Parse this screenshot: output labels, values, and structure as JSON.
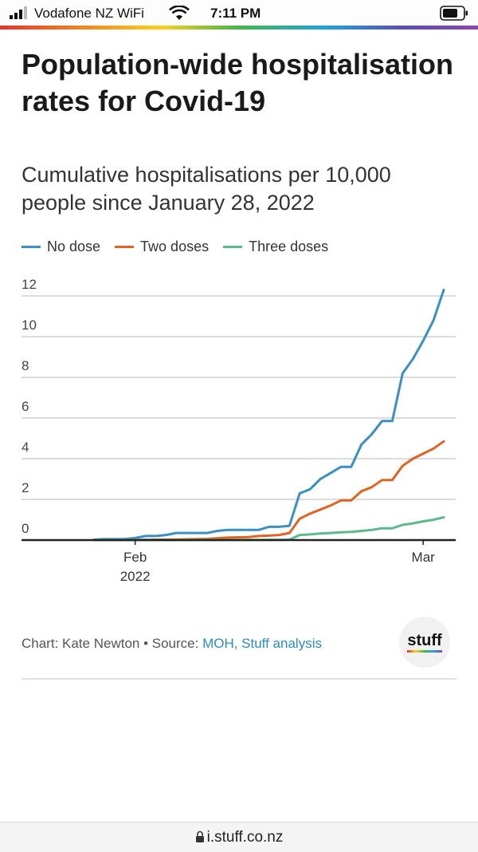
{
  "status_bar": {
    "carrier": "Vodafone NZ WiFi",
    "time": "7:11 PM"
  },
  "header": {
    "title": "Population-wide hospitalisation rates for Covid-19",
    "subtitle": "Cumulative hospitalisations per 10,000 people since January 28, 2022"
  },
  "colors": {
    "no_dose": "#3a8fc4",
    "two_doses": "#e2621f",
    "three_doses": "#5bb98a"
  },
  "chart_data": {
    "type": "line",
    "title": "Population-wide hospitalisation rates for Covid-19",
    "subtitle": "Cumulative hospitalisations per 10,000 people since January 28, 2022",
    "xlabel": "",
    "ylabel": "",
    "x_ticks": [
      {
        "date": "2022-02-01",
        "label": "Feb",
        "sublabel": "2022"
      },
      {
        "date": "2022-03-01",
        "label": "Mar",
        "sublabel": ""
      }
    ],
    "y_ticks": [
      0,
      2,
      4,
      6,
      8,
      10,
      12
    ],
    "ylim": [
      0,
      12
    ],
    "xlim": [
      "2022-01-28",
      "2022-03-04"
    ],
    "grid": true,
    "legend_position": "top-left",
    "series": [
      {
        "name": "No dose",
        "color": "#3a8fc4",
        "points": [
          [
            "2022-01-28",
            0.02
          ],
          [
            "2022-01-29",
            0.05
          ],
          [
            "2022-01-30",
            0.05
          ],
          [
            "2022-01-31",
            0.05
          ],
          [
            "2022-02-01",
            0.1
          ],
          [
            "2022-02-02",
            0.2
          ],
          [
            "2022-02-03",
            0.2
          ],
          [
            "2022-02-04",
            0.25
          ],
          [
            "2022-02-05",
            0.35
          ],
          [
            "2022-02-06",
            0.35
          ],
          [
            "2022-02-07",
            0.35
          ],
          [
            "2022-02-08",
            0.35
          ],
          [
            "2022-02-09",
            0.45
          ],
          [
            "2022-02-10",
            0.5
          ],
          [
            "2022-02-11",
            0.5
          ],
          [
            "2022-02-12",
            0.5
          ],
          [
            "2022-02-13",
            0.5
          ],
          [
            "2022-02-14",
            0.65
          ],
          [
            "2022-02-15",
            0.65
          ],
          [
            "2022-02-16",
            0.7
          ],
          [
            "2022-02-17",
            2.3
          ],
          [
            "2022-02-18",
            2.5
          ],
          [
            "2022-02-19",
            3.0
          ],
          [
            "2022-02-20",
            3.3
          ],
          [
            "2022-02-21",
            3.6
          ],
          [
            "2022-02-22",
            3.6
          ],
          [
            "2022-02-23",
            4.7
          ],
          [
            "2022-02-24",
            5.2
          ],
          [
            "2022-02-25",
            5.85
          ],
          [
            "2022-02-26",
            5.85
          ],
          [
            "2022-02-27",
            8.2
          ],
          [
            "2022-02-28",
            8.9
          ],
          [
            "2022-03-01",
            9.8
          ],
          [
            "2022-03-02",
            10.8
          ],
          [
            "2022-03-03",
            12.3
          ]
        ]
      },
      {
        "name": "Two doses",
        "color": "#e2621f",
        "points": [
          [
            "2022-01-28",
            0.0
          ],
          [
            "2022-02-01",
            0.01
          ],
          [
            "2022-02-05",
            0.03
          ],
          [
            "2022-02-08",
            0.06
          ],
          [
            "2022-02-10",
            0.12
          ],
          [
            "2022-02-12",
            0.15
          ],
          [
            "2022-02-13",
            0.2
          ],
          [
            "2022-02-14",
            0.22
          ],
          [
            "2022-02-15",
            0.25
          ],
          [
            "2022-02-16",
            0.35
          ],
          [
            "2022-02-17",
            1.05
          ],
          [
            "2022-02-18",
            1.3
          ],
          [
            "2022-02-19",
            1.5
          ],
          [
            "2022-02-20",
            1.7
          ],
          [
            "2022-02-21",
            1.95
          ],
          [
            "2022-02-22",
            1.95
          ],
          [
            "2022-02-23",
            2.4
          ],
          [
            "2022-02-24",
            2.6
          ],
          [
            "2022-02-25",
            2.95
          ],
          [
            "2022-02-26",
            2.95
          ],
          [
            "2022-02-27",
            3.65
          ],
          [
            "2022-02-28",
            4.0
          ],
          [
            "2022-03-01",
            4.25
          ],
          [
            "2022-03-02",
            4.5
          ],
          [
            "2022-03-03",
            4.85
          ]
        ]
      },
      {
        "name": "Three doses",
        "color": "#5bb98a",
        "points": [
          [
            "2022-01-28",
            0.0
          ],
          [
            "2022-02-15",
            0.01
          ],
          [
            "2022-02-16",
            0.02
          ],
          [
            "2022-02-17",
            0.25
          ],
          [
            "2022-02-18",
            0.28
          ],
          [
            "2022-02-19",
            0.32
          ],
          [
            "2022-02-20",
            0.35
          ],
          [
            "2022-02-21",
            0.38
          ],
          [
            "2022-02-22",
            0.4
          ],
          [
            "2022-02-23",
            0.45
          ],
          [
            "2022-02-24",
            0.5
          ],
          [
            "2022-02-25",
            0.58
          ],
          [
            "2022-02-26",
            0.58
          ],
          [
            "2022-02-27",
            0.75
          ],
          [
            "2022-02-28",
            0.82
          ],
          [
            "2022-03-01",
            0.92
          ],
          [
            "2022-03-02",
            1.0
          ],
          [
            "2022-03-03",
            1.12
          ]
        ]
      }
    ]
  },
  "footer": {
    "credit": "Chart: Kate Newton • Source: ",
    "source_link": "MOH, Stuff analysis",
    "logo_text": "stuff"
  },
  "url_bar": {
    "domain": "i.stuff.co.nz"
  }
}
